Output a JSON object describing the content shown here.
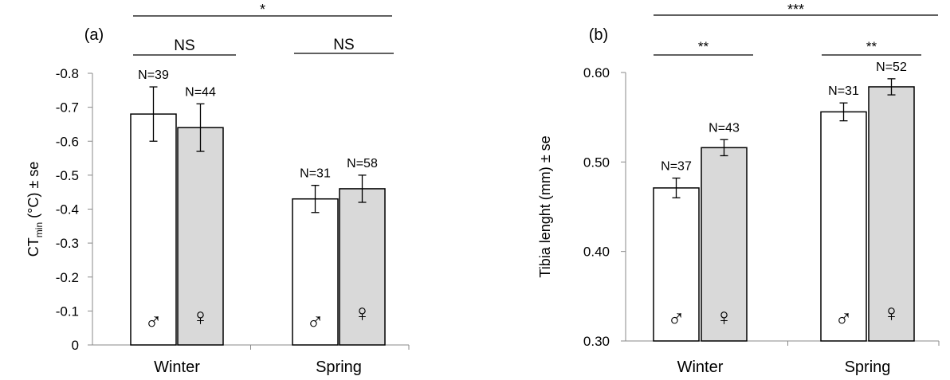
{
  "colors": {
    "male": "#ffffff",
    "female": "#d9d9d9",
    "ink": "#000000",
    "axis": "#888888"
  },
  "symbols": {
    "male": "♂",
    "female": "♀"
  },
  "chart_data": [
    {
      "type": "bar",
      "panel_label": "(a)",
      "ylabel_main": "CT",
      "ylabel_sub": "min",
      "ylabel_rest": " (°C) ± se",
      "categories": [
        "Winter",
        "Spring"
      ],
      "ylim": [
        0,
        -0.8
      ],
      "yticks": [
        "0",
        "-0.1",
        "-0.2",
        "-0.3",
        "-0.4",
        "-0.5",
        "-0.6",
        "-0.7",
        "-0.8"
      ],
      "ytick_values": [
        0,
        -0.1,
        -0.2,
        -0.3,
        -0.4,
        -0.5,
        -0.6,
        -0.7,
        -0.8
      ],
      "grid": false,
      "series": [
        {
          "sex": "male",
          "values": [
            -0.68,
            -0.43
          ],
          "errors": [
            0.08,
            0.04
          ],
          "n_labels": [
            "N=39",
            "N=31"
          ]
        },
        {
          "sex": "female",
          "values": [
            -0.64,
            -0.46
          ],
          "errors": [
            0.07,
            0.04
          ],
          "n_labels": [
            "N=44",
            "N=58"
          ]
        }
      ],
      "significance": {
        "overall": "*",
        "within": [
          "NS",
          "NS"
        ]
      }
    },
    {
      "type": "bar",
      "panel_label": "(b)",
      "ylabel": "Tibia lenght (mm) ± se",
      "categories": [
        "Winter",
        "Spring"
      ],
      "ylim": [
        0.3,
        0.6
      ],
      "yticks": [
        "0.30",
        "0.40",
        "0.50",
        "0.60"
      ],
      "ytick_values": [
        0.3,
        0.4,
        0.5,
        0.6
      ],
      "grid": false,
      "series": [
        {
          "sex": "male",
          "values": [
            0.471,
            0.556
          ],
          "errors": [
            0.011,
            0.01
          ],
          "n_labels": [
            "N=37",
            "N=31"
          ]
        },
        {
          "sex": "female",
          "values": [
            0.516,
            0.584
          ],
          "errors": [
            0.009,
            0.009
          ],
          "n_labels": [
            "N=43",
            "N=52"
          ]
        }
      ],
      "significance": {
        "overall": "***",
        "within": [
          "**",
          "**"
        ]
      }
    }
  ]
}
